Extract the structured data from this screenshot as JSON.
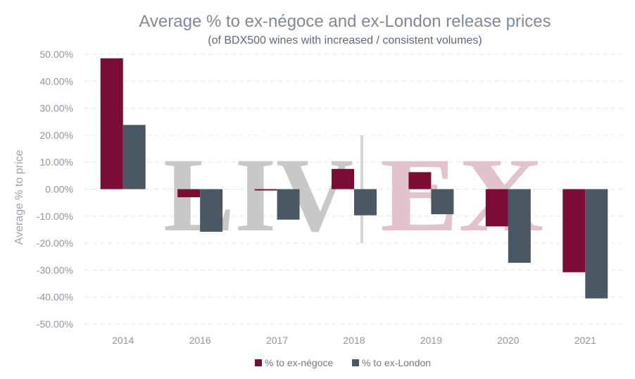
{
  "chart_data": {
    "type": "bar",
    "title": "Average % to ex-négoce and ex-London release prices",
    "subtitle": "(of BDX500 wines with increased / consistent volumes)",
    "ylabel": "Average % to price",
    "xlabel": "",
    "categories": [
      "2014",
      "2016",
      "2017",
      "2018",
      "2019",
      "2020",
      "2021"
    ],
    "series": [
      {
        "name": "% to ex-négoce",
        "color": "#7b0c35",
        "values": [
          48.5,
          -3.0,
          -0.5,
          7.5,
          6.3,
          -13.8,
          -30.8
        ]
      },
      {
        "name": "% to ex-London",
        "color": "#4a5864",
        "values": [
          23.8,
          -15.8,
          -11.3,
          -9.7,
          -9.3,
          -27.3,
          -40.5
        ]
      }
    ],
    "ylim": [
      -50,
      50
    ],
    "yticks": [
      "50.00%",
      "40.00%",
      "30.00%",
      "20.00%",
      "10.00%",
      "0.00%",
      "-10.00%",
      "-20.00%",
      "-30.00%",
      "-40.00%",
      "-50.00%"
    ],
    "ytick_values": [
      50,
      40,
      30,
      20,
      10,
      0,
      -10,
      -20,
      -30,
      -40,
      -50
    ],
    "grid": true,
    "legend_position": "bottom"
  },
  "watermark": {
    "left": "LIV",
    "right": "EX",
    "left_color": "#c8c8c8",
    "right_color": "#e3c3cb"
  }
}
